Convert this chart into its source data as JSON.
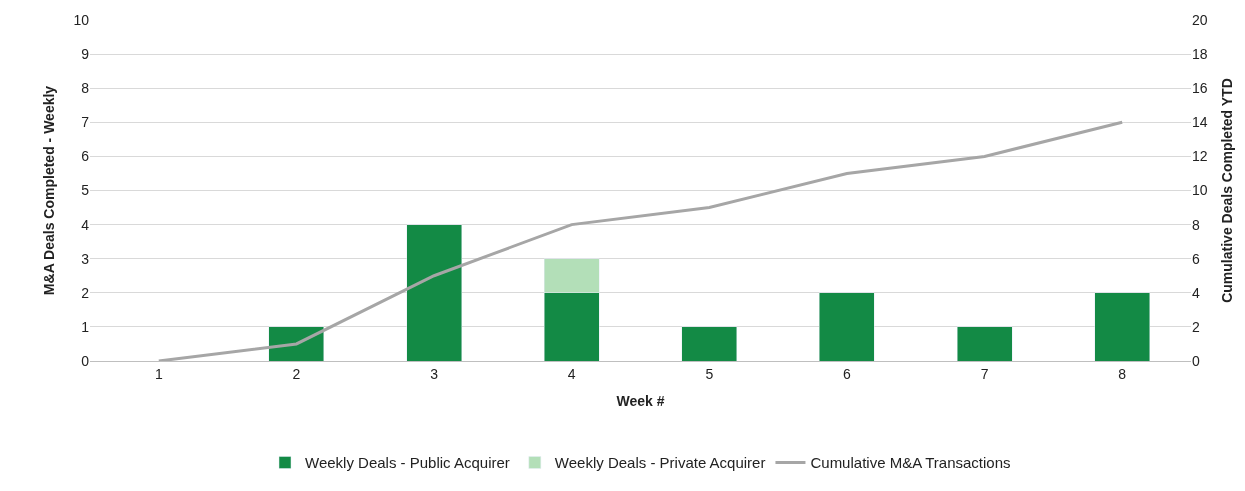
{
  "chart_data": {
    "type": "bar",
    "stacked": true,
    "xlabel": "Week #",
    "ylabel": "M&A Deals Completed - Weekly",
    "y2label": "Cumulative Deals Completed YTD",
    "categories": [
      "1",
      "2",
      "3",
      "4",
      "5",
      "6",
      "7",
      "8"
    ],
    "series": [
      {
        "name": "Weekly Deals - Public Acquirer",
        "color": "#138a45",
        "values": [
          null,
          1,
          4,
          2,
          1,
          2,
          1,
          2
        ]
      },
      {
        "name": "Weekly Deals - Private Acquirer",
        "color": "#b3dfb8",
        "values": [
          null,
          null,
          null,
          1,
          null,
          null,
          null,
          null
        ]
      },
      {
        "name": "Cumulative M&A Transactions",
        "type": "line",
        "axis": "y2",
        "color": "#a6a6a6",
        "values": [
          0,
          1,
          5,
          8,
          9,
          11,
          12,
          14
        ],
        "marker": "none",
        "line_style": "solid"
      }
    ],
    "ylim": [
      0,
      10
    ],
    "yticks": [
      0,
      1,
      2,
      3,
      4,
      5,
      6,
      7,
      8,
      9,
      10
    ],
    "y2lim": [
      0,
      20
    ],
    "y2ticks": [
      0,
      2,
      4,
      6,
      8,
      10,
      12,
      14,
      16,
      18,
      20
    ],
    "grid": "y",
    "legend": "bottom"
  }
}
